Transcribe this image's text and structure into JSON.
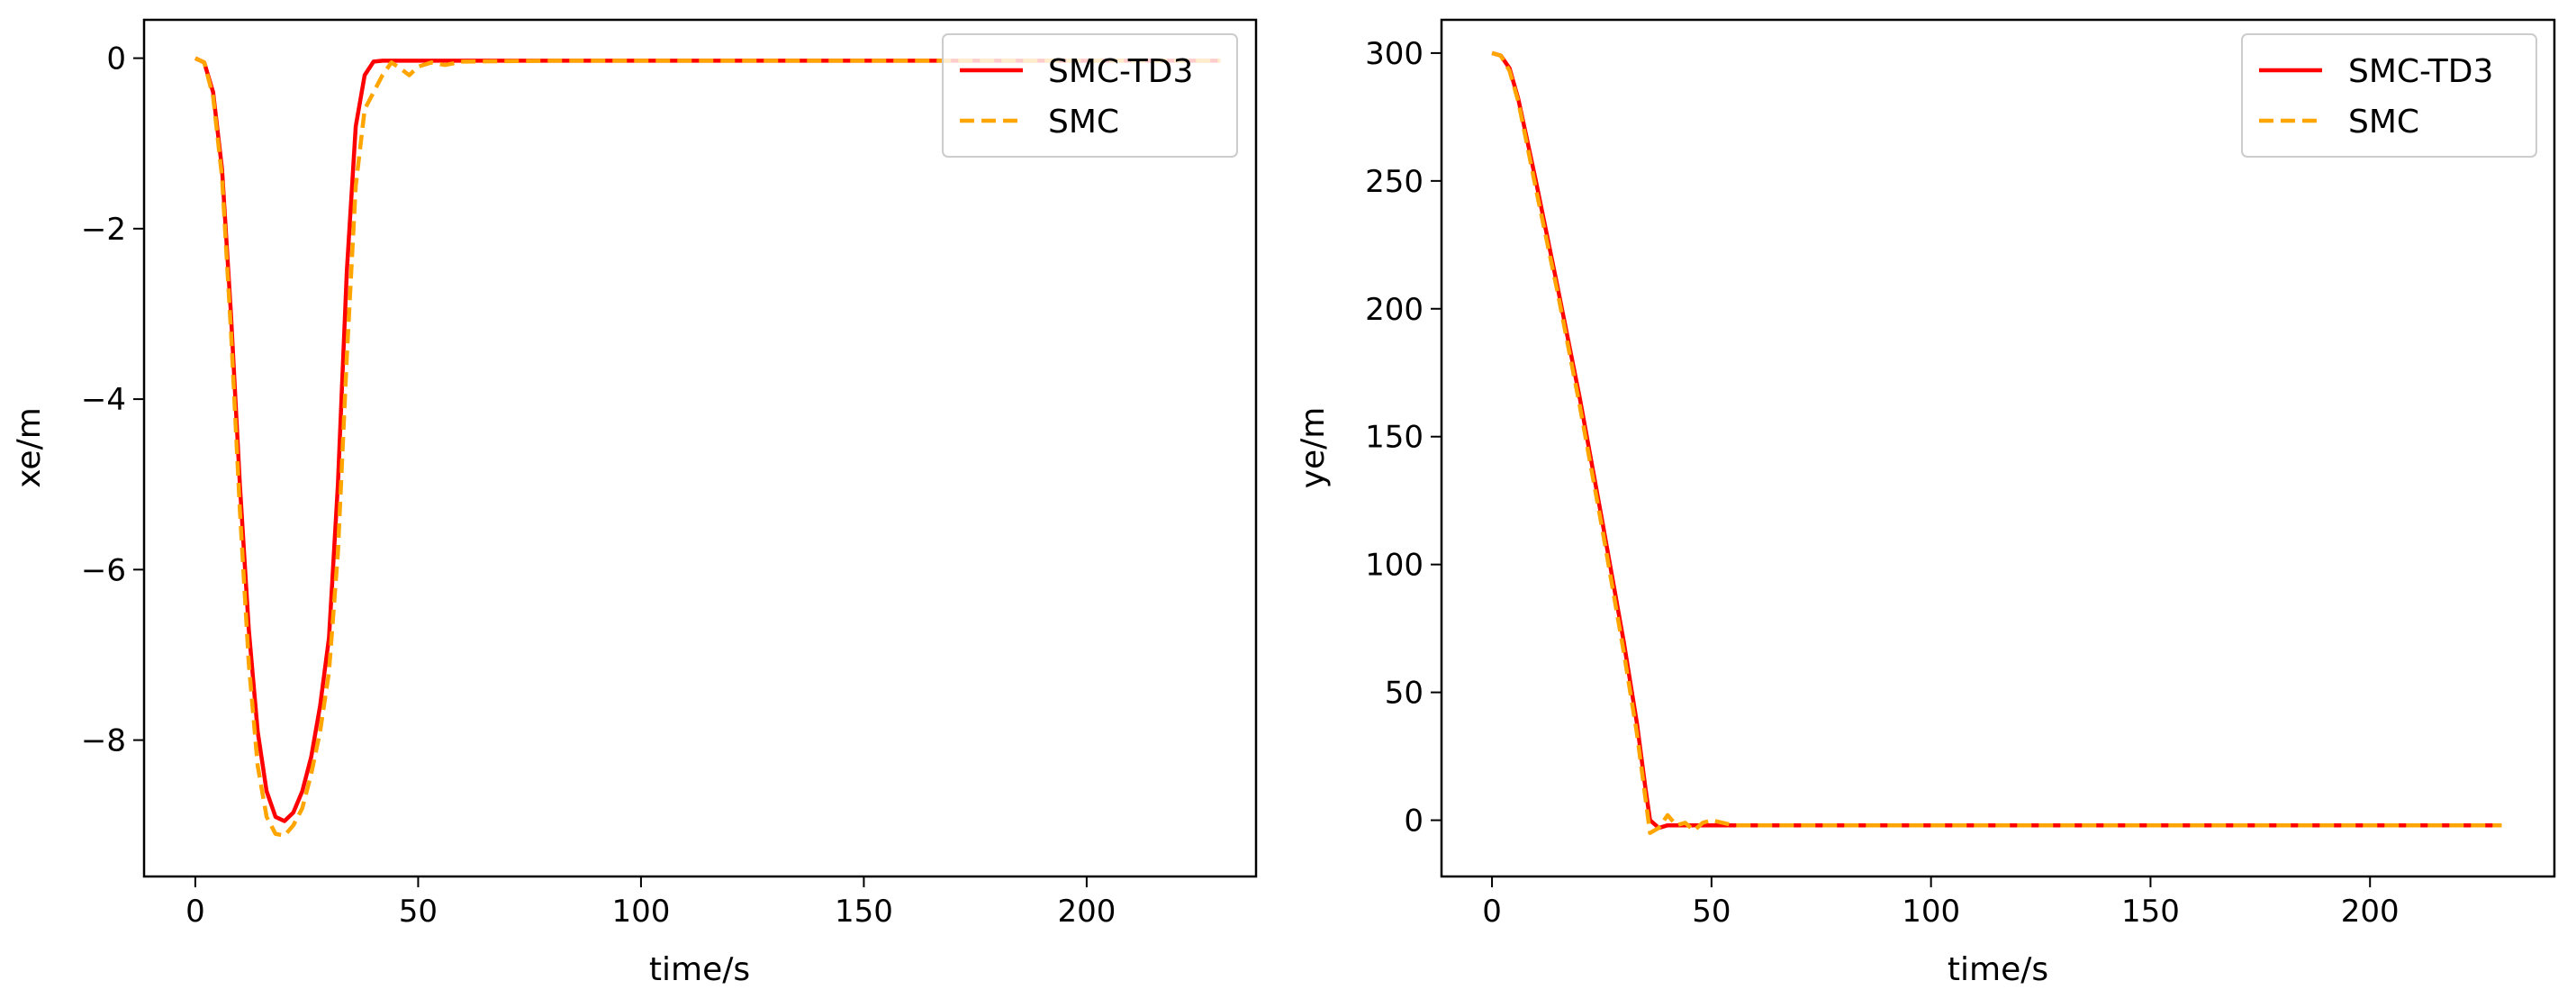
{
  "chart_data": [
    {
      "type": "line",
      "title": "",
      "xlabel": "time/s",
      "ylabel": "xe/m",
      "xlim": [
        -11.5,
        238
      ],
      "ylim": [
        -9.6,
        0.45
      ],
      "xticks": [
        0,
        50,
        100,
        150,
        200
      ],
      "yticks": [
        0,
        -2,
        -4,
        -6,
        -8
      ],
      "ytick_labels": [
        "0",
        "−2",
        "−4",
        "−6",
        "−8"
      ],
      "grid": false,
      "legend_position": "top-right",
      "series": [
        {
          "name": "SMC-TD3",
          "color": "#ff0000",
          "style": "solid",
          "x": [
            0,
            2,
            4,
            6,
            8,
            10,
            12,
            14,
            16,
            18,
            20,
            22,
            24,
            26,
            28,
            30,
            32,
            34,
            36,
            38,
            40,
            42,
            45,
            50,
            60,
            80,
            100,
            150,
            200,
            230
          ],
          "y": [
            0,
            -0.05,
            -0.4,
            -1.3,
            -3.0,
            -5.0,
            -6.7,
            -7.9,
            -8.6,
            -8.9,
            -8.95,
            -8.85,
            -8.6,
            -8.2,
            -7.6,
            -6.8,
            -5.0,
            -2.5,
            -0.8,
            -0.2,
            -0.04,
            -0.03,
            -0.03,
            -0.03,
            -0.03,
            -0.03,
            -0.03,
            -0.03,
            -0.03,
            -0.03
          ]
        },
        {
          "name": "SMC",
          "color": "#ffa500",
          "style": "dashed",
          "x": [
            0,
            2,
            4,
            6,
            8,
            10,
            12,
            14,
            16,
            18,
            20,
            22,
            24,
            26,
            28,
            30,
            32,
            34,
            36,
            38,
            40,
            42,
            44,
            46,
            48,
            50,
            53,
            56,
            60,
            80,
            100,
            150,
            200,
            230
          ],
          "y": [
            0,
            -0.05,
            -0.45,
            -1.4,
            -3.2,
            -5.3,
            -7.1,
            -8.3,
            -8.9,
            -9.1,
            -9.12,
            -9.0,
            -8.8,
            -8.4,
            -7.9,
            -7.2,
            -5.8,
            -3.5,
            -1.5,
            -0.6,
            -0.4,
            -0.2,
            -0.05,
            -0.12,
            -0.2,
            -0.1,
            -0.05,
            -0.08,
            -0.04,
            -0.03,
            -0.03,
            -0.03,
            -0.03,
            -0.03
          ]
        }
      ]
    },
    {
      "type": "line",
      "title": "",
      "xlabel": "time/s",
      "ylabel": "ye/m",
      "xlim": [
        -11.5,
        242
      ],
      "ylim": [
        -22,
        313
      ],
      "xticks": [
        0,
        50,
        100,
        150,
        200
      ],
      "yticks": [
        0,
        50,
        100,
        150,
        200,
        250,
        300
      ],
      "ytick_labels": [
        "0",
        "50",
        "100",
        "150",
        "200",
        "250",
        "300"
      ],
      "grid": false,
      "legend_position": "top-right",
      "series": [
        {
          "name": "SMC-TD3",
          "color": "#ff0000",
          "style": "solid",
          "x": [
            0,
            2,
            4,
            6,
            8,
            10,
            15,
            20,
            25,
            30,
            33,
            35,
            36,
            38,
            40,
            45,
            50,
            60,
            100,
            150,
            200,
            230
          ],
          "y": [
            300,
            299,
            294,
            282,
            266,
            250,
            208,
            165,
            118,
            70,
            38,
            12,
            0,
            -3,
            -2,
            -2,
            -2,
            -2,
            -2,
            -2,
            -2,
            -2
          ]
        },
        {
          "name": "SMC",
          "color": "#ffa500",
          "style": "dashed",
          "x": [
            0,
            2,
            4,
            6,
            8,
            10,
            15,
            20,
            25,
            30,
            33,
            35,
            36,
            38,
            40,
            42,
            44,
            46,
            48,
            50,
            55,
            60,
            100,
            150,
            200,
            230
          ],
          "y": [
            300,
            299,
            293,
            281,
            264,
            247,
            206,
            162,
            115,
            66,
            34,
            8,
            -5,
            -3,
            2,
            -2,
            -1,
            -4,
            -1,
            0,
            -2,
            -2,
            -2,
            -2,
            -2,
            -2
          ]
        }
      ]
    }
  ]
}
